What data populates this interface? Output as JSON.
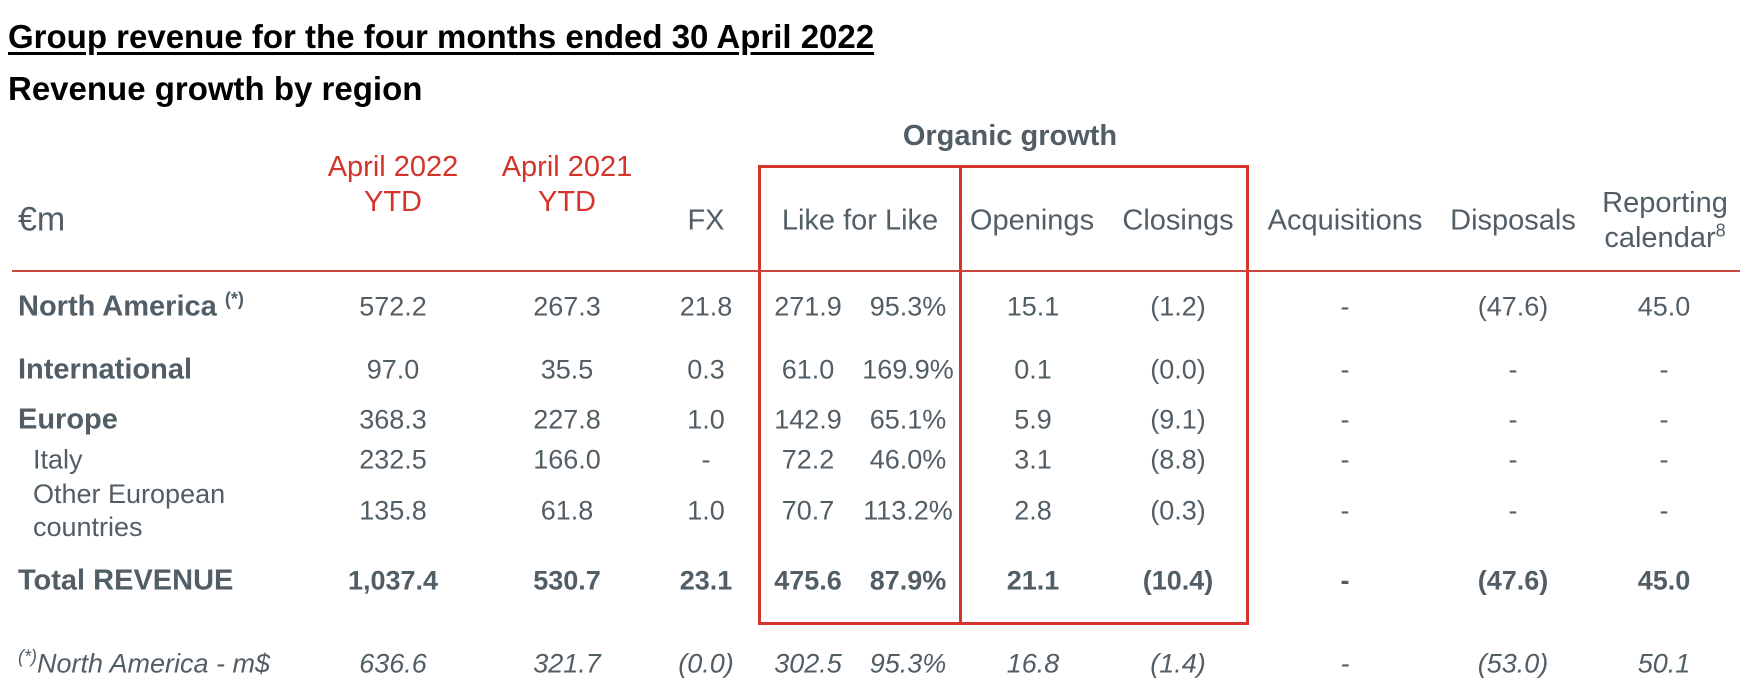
{
  "title": "Group revenue for the four months ended 30 April 2022",
  "subtitle": "Revenue growth by region",
  "organic_label": "Organic growth",
  "currency_label": "€m",
  "headers": {
    "apr22_l1": "April 2022",
    "apr22_l2": "YTD",
    "apr21_l1": "April 2021",
    "apr21_l2": "YTD",
    "fx": "FX",
    "lfl": "Like for Like",
    "openings": "Openings",
    "closings": "Closings",
    "acq": "Acquisitions",
    "disp": "Disposals",
    "rep_l1": "Reporting",
    "rep_l2": "calendar",
    "rep_sup": "8"
  },
  "rows": [
    {
      "label": "North America",
      "sup": "(*)",
      "apr22": "572.2",
      "apr21": "267.3",
      "fx": "21.8",
      "lfl": "271.9",
      "lfl_pct": "95.3%",
      "open": "15.1",
      "close": "(1.2)",
      "acq": "-",
      "disp": "(47.6)",
      "rep": "45.0"
    },
    {
      "label": "International",
      "apr22": "97.0",
      "apr21": "35.5",
      "fx": "0.3",
      "lfl": "61.0",
      "lfl_pct": "169.9%",
      "open": "0.1",
      "close": "(0.0)",
      "acq": "-",
      "disp": "-",
      "rep": "-"
    },
    {
      "label": "Europe",
      "apr22": "368.3",
      "apr21": "227.8",
      "fx": "1.0",
      "lfl": "142.9",
      "lfl_pct": "65.1%",
      "open": "5.9",
      "close": "(9.1)",
      "acq": "-",
      "disp": "-",
      "rep": "-"
    },
    {
      "label": "Italy",
      "apr22": "232.5",
      "apr21": "166.0",
      "fx": "-",
      "lfl": "72.2",
      "lfl_pct": "46.0%",
      "open": "3.1",
      "close": "(8.8)",
      "acq": "-",
      "disp": "-",
      "rep": "-"
    },
    {
      "label_l1": "Other European",
      "label_l2": "countries",
      "apr22": "135.8",
      "apr21": "61.8",
      "fx": "1.0",
      "lfl": "70.7",
      "lfl_pct": "113.2%",
      "open": "2.8",
      "close": "(0.3)",
      "acq": "-",
      "disp": "-",
      "rep": "-"
    },
    {
      "label": "Total REVENUE",
      "apr22": "1,037.4",
      "apr21": "530.7",
      "fx": "23.1",
      "lfl": "475.6",
      "lfl_pct": "87.9%",
      "open": "21.1",
      "close": "(10.4)",
      "acq": "-",
      "disp": "(47.6)",
      "rep": "45.0"
    },
    {
      "sup": "(*)",
      "label": "North America - m$",
      "apr22": "636.6",
      "apr21": "321.7",
      "fx": "(0.0)",
      "lfl": "302.5",
      "lfl_pct": "95.3%",
      "open": "16.8",
      "close": "(1.4)",
      "acq": "-",
      "disp": "(53.0)",
      "rep": "50.1"
    }
  ],
  "colors": {
    "accent": "#d3352a",
    "text": "#525e66"
  }
}
